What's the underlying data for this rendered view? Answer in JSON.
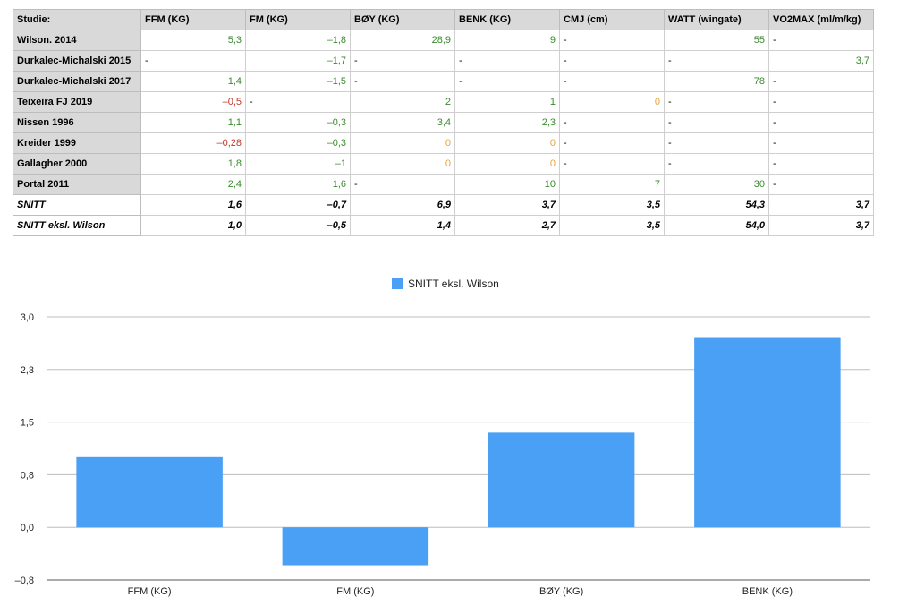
{
  "table": {
    "headers": [
      "Studie:",
      "FFM (KG)",
      "FM (KG)",
      "BØY (KG)",
      "BENK (KG)",
      "CMJ (cm)",
      "WATT (wingate)",
      "VO2MAX (ml/m/kg)"
    ],
    "rows": [
      {
        "study": "Wilson. 2014",
        "cells": [
          {
            "v": "5,3",
            "c": "green"
          },
          {
            "v": "–1,8",
            "c": "green"
          },
          {
            "v": "28,9",
            "c": "green"
          },
          {
            "v": "9",
            "c": "green"
          },
          {
            "v": "-",
            "c": "dash"
          },
          {
            "v": "55",
            "c": "green"
          },
          {
            "v": "-",
            "c": "dash"
          }
        ]
      },
      {
        "study": "Durkalec-Michalski 2015",
        "cells": [
          {
            "v": "-",
            "c": "dash"
          },
          {
            "v": "–1,7",
            "c": "green"
          },
          {
            "v": "-",
            "c": "dash"
          },
          {
            "v": "-",
            "c": "dash"
          },
          {
            "v": "-",
            "c": "dash"
          },
          {
            "v": "-",
            "c": "dash"
          },
          {
            "v": "3,7",
            "c": "green"
          }
        ]
      },
      {
        "study": "Durkalec-Michalski 2017",
        "cells": [
          {
            "v": "1,4",
            "c": "green"
          },
          {
            "v": "–1,5",
            "c": "green"
          },
          {
            "v": "-",
            "c": "dash"
          },
          {
            "v": "-",
            "c": "dash"
          },
          {
            "v": "-",
            "c": "dash"
          },
          {
            "v": "78",
            "c": "green"
          },
          {
            "v": "-",
            "c": "dash"
          }
        ]
      },
      {
        "study": "Teixeira FJ 2019",
        "cells": [
          {
            "v": "–0,5",
            "c": "red"
          },
          {
            "v": "-",
            "c": "dash"
          },
          {
            "v": "2",
            "c": "green"
          },
          {
            "v": "1",
            "c": "green"
          },
          {
            "v": "0",
            "c": "orange"
          },
          {
            "v": "-",
            "c": "dash"
          },
          {
            "v": "-",
            "c": "dash"
          }
        ]
      },
      {
        "study": "Nissen 1996",
        "cells": [
          {
            "v": "1,1",
            "c": "green"
          },
          {
            "v": "–0,3",
            "c": "green"
          },
          {
            "v": "3,4",
            "c": "green"
          },
          {
            "v": "2,3",
            "c": "green"
          },
          {
            "v": "-",
            "c": "dash"
          },
          {
            "v": "-",
            "c": "dash"
          },
          {
            "v": "-",
            "c": "dash"
          }
        ]
      },
      {
        "study": "Kreider 1999",
        "cells": [
          {
            "v": "–0,28",
            "c": "red"
          },
          {
            "v": "–0,3",
            "c": "green"
          },
          {
            "v": "0",
            "c": "orange"
          },
          {
            "v": "0",
            "c": "orange"
          },
          {
            "v": "-",
            "c": "dash"
          },
          {
            "v": "-",
            "c": "dash"
          },
          {
            "v": "-",
            "c": "dash"
          }
        ]
      },
      {
        "study": "Gallagher 2000",
        "cells": [
          {
            "v": "1,8",
            "c": "green"
          },
          {
            "v": "–1",
            "c": "green"
          },
          {
            "v": "0",
            "c": "orange"
          },
          {
            "v": "0",
            "c": "orange"
          },
          {
            "v": "-",
            "c": "dash"
          },
          {
            "v": "-",
            "c": "dash"
          },
          {
            "v": "-",
            "c": "dash"
          }
        ]
      },
      {
        "study": "Portal 2011",
        "cells": [
          {
            "v": "2,4",
            "c": "green"
          },
          {
            "v": "1,6",
            "c": "green"
          },
          {
            "v": "-",
            "c": "dash"
          },
          {
            "v": "10",
            "c": "green"
          },
          {
            "v": "7",
            "c": "green"
          },
          {
            "v": "30",
            "c": "green"
          },
          {
            "v": "-",
            "c": "dash"
          }
        ]
      }
    ],
    "summary": [
      {
        "study": "SNITT",
        "cells": [
          "1,6",
          "–0,7",
          "6,9",
          "3,7",
          "3,5",
          "54,3",
          "3,7"
        ]
      },
      {
        "study": "SNITT eksl. Wilson",
        "cells": [
          "1,0",
          "–0,5",
          "1,4",
          "2,7",
          "3,5",
          "54,0",
          "3,7"
        ]
      }
    ]
  },
  "chart_data": {
    "type": "bar",
    "legend": "SNITT eksl. Wilson",
    "legend_position": "top-center",
    "categories": [
      "FFM (KG)",
      "FM (KG)",
      "BØY (KG)",
      "BENK (KG)"
    ],
    "series": [
      {
        "name": "SNITT eksl. Wilson",
        "values": [
          1.0,
          -0.54,
          1.35,
          2.7
        ],
        "color": "#4aa0f5"
      }
    ],
    "yticks": [
      "3,0",
      "2,3",
      "1,5",
      "0,8",
      "0,0",
      "–0,8"
    ],
    "ytick_values": [
      3.0,
      2.25,
      1.5,
      0.75,
      0.0,
      -0.75
    ],
    "ylim": [
      -0.75,
      3.0
    ],
    "grid": true
  }
}
